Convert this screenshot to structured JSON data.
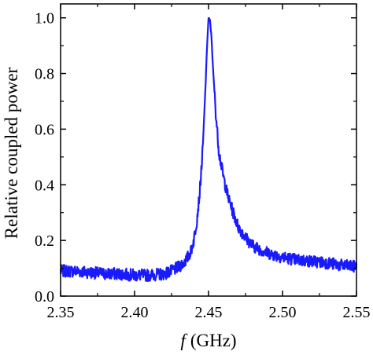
{
  "chart_data": {
    "type": "line",
    "title": "",
    "xlabel_var": "f",
    "xlabel_unit": "(GHz)",
    "ylabel": "Relative coupled power",
    "xlim": [
      2.35,
      2.55
    ],
    "ylim": [
      0.0,
      1.05
    ],
    "grid": false,
    "xticks": [
      2.35,
      2.4,
      2.45,
      2.5,
      2.55
    ],
    "xtick_labels": [
      "2.35",
      "2.40",
      "2.45",
      "2.50",
      "2.55"
    ],
    "yticks": [
      0.0,
      0.2,
      0.4,
      0.6,
      0.8,
      1.0
    ],
    "ytick_labels": [
      "0.0",
      "0.2",
      "0.4",
      "0.6",
      "0.8",
      "1.0"
    ],
    "series": [
      {
        "color": "#1a1aff",
        "x": [
          2.35,
          2.36,
          2.37,
          2.38,
          2.39,
          2.4,
          2.41,
          2.42,
          2.425,
          2.43,
          2.435,
          2.438,
          2.44,
          2.442,
          2.444,
          2.446,
          2.448,
          2.449,
          2.45,
          2.451,
          2.452,
          2.453,
          2.455,
          2.457,
          2.46,
          2.463,
          2.466,
          2.47,
          2.475,
          2.48,
          2.49,
          2.5,
          2.51,
          2.52,
          2.53,
          2.54,
          2.55
        ],
        "y": [
          0.09,
          0.09,
          0.085,
          0.08,
          0.08,
          0.075,
          0.075,
          0.08,
          0.09,
          0.105,
          0.13,
          0.16,
          0.2,
          0.27,
          0.37,
          0.52,
          0.76,
          0.9,
          1.0,
          0.99,
          0.93,
          0.82,
          0.65,
          0.52,
          0.43,
          0.36,
          0.31,
          0.25,
          0.21,
          0.18,
          0.155,
          0.14,
          0.13,
          0.125,
          0.12,
          0.11,
          0.105
        ]
      }
    ]
  }
}
